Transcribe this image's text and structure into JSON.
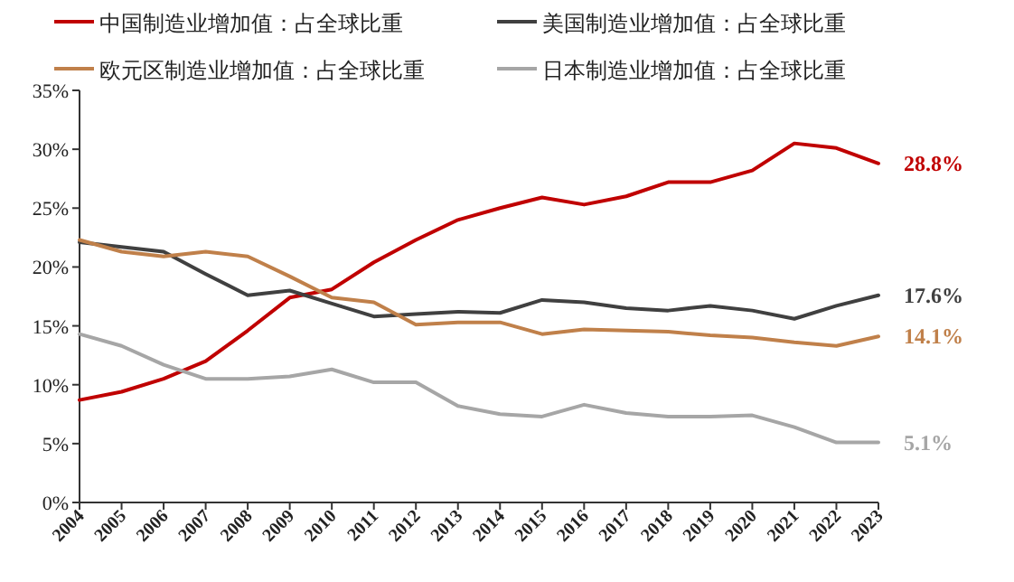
{
  "chart_data": {
    "type": "line",
    "categories": [
      "2004",
      "2005",
      "2006",
      "2007",
      "2008",
      "2009",
      "2010",
      "2011",
      "2012",
      "2013",
      "2014",
      "2015",
      "2016",
      "2017",
      "2018",
      "2019",
      "2020",
      "2021",
      "2022",
      "2023"
    ],
    "ylim": [
      0,
      35
    ],
    "yticks": [
      {
        "value": 0,
        "label": "0%"
      },
      {
        "value": 5,
        "label": "5%"
      },
      {
        "value": 10,
        "label": "10%"
      },
      {
        "value": 15,
        "label": "15%"
      },
      {
        "value": 20,
        "label": "20%"
      },
      {
        "value": 25,
        "label": "25%"
      },
      {
        "value": 30,
        "label": "30%"
      },
      {
        "value": 35,
        "label": "35%"
      }
    ],
    "grid": false,
    "legend": "top",
    "marker": "none",
    "line_style": "solid",
    "series": [
      {
        "name": "中国制造业增加值：占全球比重",
        "color": "#c00000",
        "values": [
          8.7,
          9.4,
          10.5,
          12.0,
          14.6,
          17.4,
          18.1,
          20.4,
          22.3,
          24.0,
          25.0,
          25.9,
          25.3,
          26.0,
          27.2,
          27.2,
          28.2,
          30.5,
          30.1,
          28.8
        ],
        "value_labels": [
          null,
          null,
          null,
          null,
          null,
          null,
          null,
          null,
          null,
          null,
          null,
          null,
          null,
          null,
          null,
          null,
          null,
          null,
          null,
          "28.8%"
        ]
      },
      {
        "name": "美国制造业增加值：占全球比重",
        "color": "#404040",
        "values": [
          22.1,
          21.7,
          21.3,
          19.4,
          17.6,
          18.0,
          16.9,
          15.8,
          16.0,
          16.2,
          16.1,
          17.2,
          17.0,
          16.5,
          16.3,
          16.7,
          16.3,
          15.6,
          16.7,
          17.6
        ],
        "value_labels": [
          null,
          null,
          null,
          null,
          null,
          null,
          null,
          null,
          null,
          null,
          null,
          null,
          null,
          null,
          null,
          null,
          null,
          null,
          null,
          "17.6%"
        ]
      },
      {
        "name": "欧元区制造业增加值：占全球比重",
        "color": "#c0804a",
        "values": [
          22.3,
          21.3,
          20.9,
          21.3,
          20.9,
          19.2,
          17.4,
          17.0,
          15.1,
          15.3,
          15.3,
          14.3,
          14.7,
          14.6,
          14.5,
          14.2,
          14.0,
          13.6,
          13.3,
          14.1
        ],
        "value_labels": [
          null,
          null,
          null,
          null,
          null,
          null,
          null,
          null,
          null,
          null,
          null,
          null,
          null,
          null,
          null,
          null,
          null,
          null,
          null,
          "14.1%"
        ]
      },
      {
        "name": "日本制造业增加值：占全球比重",
        "color": "#a6a6a6",
        "values": [
          14.3,
          13.3,
          11.7,
          10.5,
          10.5,
          10.7,
          11.3,
          10.2,
          10.2,
          8.2,
          7.5,
          7.3,
          8.3,
          7.6,
          7.3,
          7.3,
          7.4,
          6.4,
          5.1,
          5.1
        ],
        "value_labels": [
          null,
          null,
          null,
          null,
          null,
          null,
          null,
          null,
          null,
          null,
          null,
          null,
          null,
          null,
          null,
          null,
          null,
          null,
          null,
          "5.1%"
        ]
      }
    ]
  }
}
